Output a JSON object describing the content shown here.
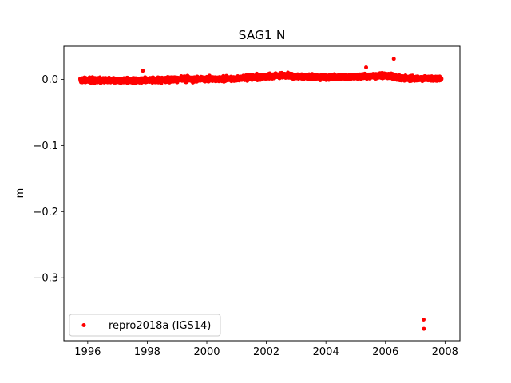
{
  "chart_data": {
    "type": "scatter",
    "title": "SAG1 N",
    "xlabel": "",
    "ylabel": "m",
    "xlim": [
      1995.2,
      2008.5
    ],
    "ylim": [
      -0.395,
      0.05
    ],
    "xticks": [
      1996,
      1998,
      2000,
      2002,
      2004,
      2006,
      2008
    ],
    "xtick_labels": [
      "1996",
      "1998",
      "2000",
      "2002",
      "2004",
      "2006",
      "2008"
    ],
    "yticks": [
      0.0,
      -0.1,
      -0.2,
      -0.3
    ],
    "ytick_labels": [
      "0.0",
      "−0.1",
      "−0.2",
      "−0.3"
    ],
    "grid": false,
    "legend_position": "lower-left",
    "series": [
      {
        "name": "repro2018a (IGS14)",
        "color": "#ff0000",
        "marker": "circle",
        "bulk": {
          "x_start": 1995.75,
          "x_end": 2007.88,
          "gap": [
            2007.2,
            2007.3
          ],
          "trend": [
            [
              1995.75,
              -0.001
            ],
            [
              1997.0,
              -0.002
            ],
            [
              1999.0,
              0.0
            ],
            [
              2001.0,
              0.001
            ],
            [
              2002.5,
              0.006
            ],
            [
              2004.0,
              0.003
            ],
            [
              2005.0,
              0.004
            ],
            [
              2006.0,
              0.006
            ],
            [
              2006.5,
              0.002
            ],
            [
              2007.88,
              0.001
            ]
          ],
          "scatter_m": 0.0035
        },
        "points": [
          {
            "x": 1997.85,
            "y": 0.013
          },
          {
            "x": 2005.35,
            "y": 0.018
          },
          {
            "x": 2006.28,
            "y": 0.031
          },
          {
            "x": 2007.28,
            "y": -0.363
          },
          {
            "x": 2007.29,
            "y": -0.377
          }
        ]
      }
    ]
  }
}
